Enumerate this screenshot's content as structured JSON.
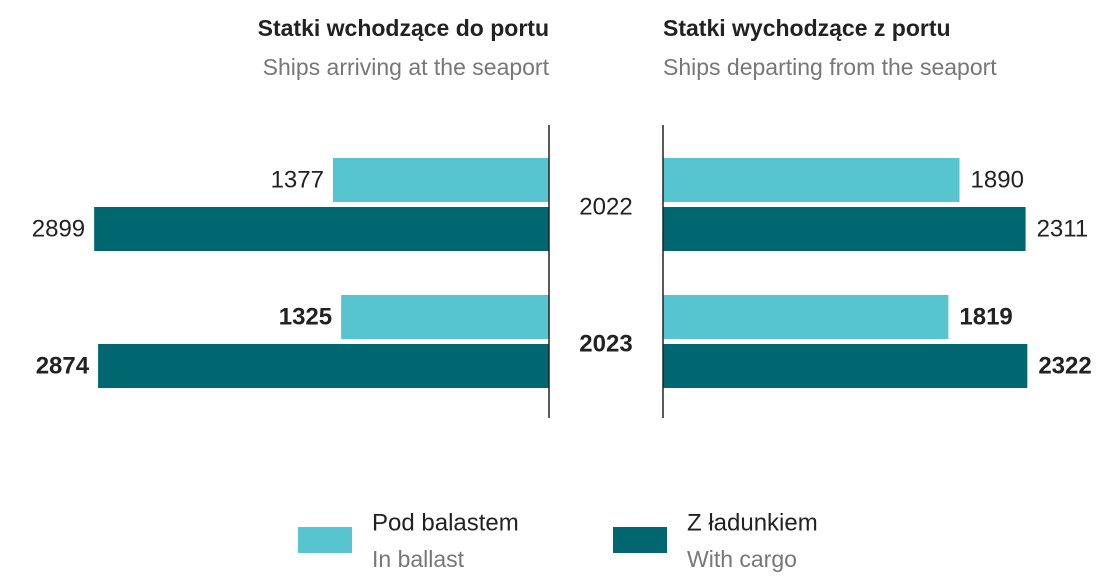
{
  "chart_data": {
    "type": "bar",
    "orientation": "horizontal",
    "categories": [
      "2022",
      "2023"
    ],
    "xlim": [
      0,
      2900
    ],
    "panels": [
      {
        "title": "Statki wchodzące do portu",
        "subtitle": "Ships arriving at the seaport",
        "side": "left"
      },
      {
        "title": "Statki wychodzące z portu",
        "subtitle": "Ships departing from the seaport",
        "side": "right"
      }
    ],
    "series": [
      {
        "name": "Pod balastem",
        "name_translation": "In ballast",
        "color": "#56c5d0",
        "values": [
          [
            1377,
            1325
          ],
          [
            1890,
            1819
          ]
        ]
      },
      {
        "name": "Z ładunkiem",
        "name_translation": "With cargo",
        "color": "#006770",
        "values": [
          [
            2899,
            2874
          ],
          [
            2311,
            2322
          ]
        ]
      }
    ]
  }
}
